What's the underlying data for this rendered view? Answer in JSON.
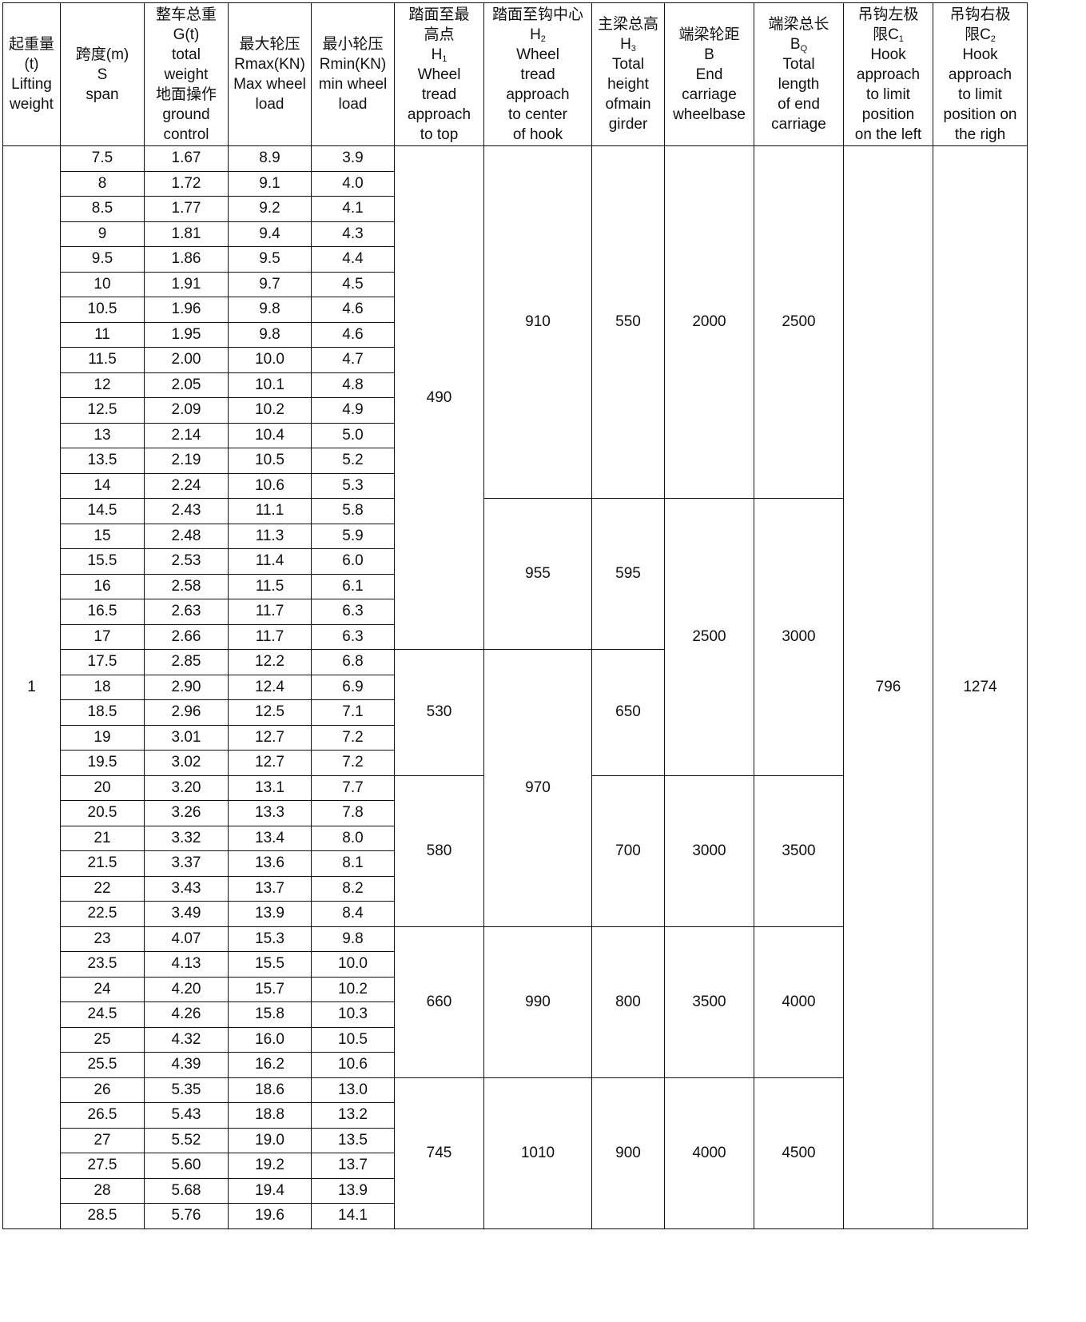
{
  "headers": [
    {
      "key": "lifting_weight",
      "lines": [
        "起重量",
        "(t)",
        "Lifting",
        "weight"
      ]
    },
    {
      "key": "span",
      "lines": [
        "跨度(m)",
        "S",
        "span"
      ]
    },
    {
      "key": "total_weight",
      "lines": [
        "整车总重",
        "G(t)",
        "total",
        "weight",
        "地面操作",
        "ground",
        "control"
      ]
    },
    {
      "key": "max_wheel_load",
      "lines": [
        "最大轮压",
        "Rmax(KN)",
        "Max wheel",
        "load"
      ]
    },
    {
      "key": "min_wheel_load",
      "lines": [
        "最小轮压",
        "Rmin(KN)",
        "min wheel",
        "load"
      ]
    },
    {
      "key": "h1",
      "lines": [
        "踏面至最",
        "高点",
        {
          "main": "H",
          "sub": "1"
        },
        "Wheel",
        "tread",
        "approach",
        "to top"
      ]
    },
    {
      "key": "h2",
      "lines": [
        "踏面至钩中心",
        {
          "main": "H",
          "sub": "2"
        },
        "Wheel",
        "tread",
        "approach",
        "to center",
        "of hook"
      ]
    },
    {
      "key": "h3",
      "lines": [
        "主梁总高",
        {
          "main": "H",
          "sub": "3"
        },
        "Total",
        "height",
        "ofmain",
        "girder"
      ]
    },
    {
      "key": "b",
      "lines": [
        "端梁轮距",
        "B",
        "End",
        "carriage",
        "wheelbase"
      ]
    },
    {
      "key": "bq",
      "lines": [
        "端梁总长",
        {
          "main": "B",
          "sub": "Q"
        },
        "Total",
        "length",
        "of end",
        "carriage"
      ]
    },
    {
      "key": "c1",
      "lines": [
        "吊钩左极",
        {
          "main": "限C",
          "sub": "1"
        },
        "Hook",
        "approach",
        "to limit",
        "position",
        "on the left"
      ]
    },
    {
      "key": "c2",
      "lines": [
        "吊钩右极",
        {
          "main": "限C",
          "sub": "2"
        },
        "Hook",
        "approach",
        "to limit",
        "position on",
        "the righ"
      ]
    }
  ],
  "lifting_weight": "1",
  "rows": [
    [
      "7.5",
      "1.67",
      "8.9",
      "3.9"
    ],
    [
      "8",
      "1.72",
      "9.1",
      "4.0"
    ],
    [
      "8.5",
      "1.77",
      "9.2",
      "4.1"
    ],
    [
      "9",
      "1.81",
      "9.4",
      "4.3"
    ],
    [
      "9.5",
      "1.86",
      "9.5",
      "4.4"
    ],
    [
      "10",
      "1.91",
      "9.7",
      "4.5"
    ],
    [
      "10.5",
      "1.96",
      "9.8",
      "4.6"
    ],
    [
      "11",
      "1.95",
      "9.8",
      "4.6"
    ],
    [
      "11.5",
      "2.00",
      "10.0",
      "4.7"
    ],
    [
      "12",
      "2.05",
      "10.1",
      "4.8"
    ],
    [
      "12.5",
      "2.09",
      "10.2",
      "4.9"
    ],
    [
      "13",
      "2.14",
      "10.4",
      "5.0"
    ],
    [
      "13.5",
      "2.19",
      "10.5",
      "5.2"
    ],
    [
      "14",
      "2.24",
      "10.6",
      "5.3"
    ],
    [
      "14.5",
      "2.43",
      "11.1",
      "5.8"
    ],
    [
      "15",
      "2.48",
      "11.3",
      "5.9"
    ],
    [
      "15.5",
      "2.53",
      "11.4",
      "6.0"
    ],
    [
      "16",
      "2.58",
      "11.5",
      "6.1"
    ],
    [
      "16.5",
      "2.63",
      "11.7",
      "6.3"
    ],
    [
      "17",
      "2.66",
      "11.7",
      "6.3"
    ],
    [
      "17.5",
      "2.85",
      "12.2",
      "6.8"
    ],
    [
      "18",
      "2.90",
      "12.4",
      "6.9"
    ],
    [
      "18.5",
      "2.96",
      "12.5",
      "7.1"
    ],
    [
      "19",
      "3.01",
      "12.7",
      "7.2"
    ],
    [
      "19.5",
      "3.02",
      "12.7",
      "7.2"
    ],
    [
      "20",
      "3.20",
      "13.1",
      "7.7"
    ],
    [
      "20.5",
      "3.26",
      "13.3",
      "7.8"
    ],
    [
      "21",
      "3.32",
      "13.4",
      "8.0"
    ],
    [
      "21.5",
      "3.37",
      "13.6",
      "8.1"
    ],
    [
      "22",
      "3.43",
      "13.7",
      "8.2"
    ],
    [
      "22.5",
      "3.49",
      "13.9",
      "8.4"
    ],
    [
      "23",
      "4.07",
      "15.3",
      "9.8"
    ],
    [
      "23.5",
      "4.13",
      "15.5",
      "10.0"
    ],
    [
      "24",
      "4.20",
      "15.7",
      "10.2"
    ],
    [
      "24.5",
      "4.26",
      "15.8",
      "10.3"
    ],
    [
      "25",
      "4.32",
      "16.0",
      "10.5"
    ],
    [
      "25.5",
      "4.39",
      "16.2",
      "10.6"
    ],
    [
      "26",
      "5.35",
      "18.6",
      "13.0"
    ],
    [
      "26.5",
      "5.43",
      "18.8",
      "13.2"
    ],
    [
      "27",
      "5.52",
      "19.0",
      "13.5"
    ],
    [
      "27.5",
      "5.60",
      "19.2",
      "13.7"
    ],
    [
      "28",
      "5.68",
      "19.4",
      "13.9"
    ],
    [
      "28.5",
      "5.76",
      "19.6",
      "14.1"
    ]
  ],
  "merged": {
    "h1": [
      {
        "value": "490",
        "rows": 20
      },
      {
        "value": "530",
        "rows": 5
      },
      {
        "value": "580",
        "rows": 6
      },
      {
        "value": "660",
        "rows": 6
      },
      {
        "value": "745",
        "rows": 6
      }
    ],
    "h2": [
      {
        "value": "910",
        "rows": 14
      },
      {
        "value": "955",
        "rows": 6
      },
      {
        "value": "970",
        "rows": 11
      },
      {
        "value": "990",
        "rows": 6
      },
      {
        "value": "1010",
        "rows": 6
      }
    ],
    "h3": [
      {
        "value": "550",
        "rows": 14
      },
      {
        "value": "595",
        "rows": 6
      },
      {
        "value": "650",
        "rows": 5
      },
      {
        "value": "700",
        "rows": 6
      },
      {
        "value": "800",
        "rows": 6
      },
      {
        "value": "900",
        "rows": 6
      }
    ],
    "b": [
      {
        "value": "2000",
        "rows": 14
      },
      {
        "value": "2500",
        "rows": 11
      },
      {
        "value": "3000",
        "rows": 6
      },
      {
        "value": "3500",
        "rows": 6
      },
      {
        "value": "4000",
        "rows": 6
      }
    ],
    "bq": [
      {
        "value": "2500",
        "rows": 14
      },
      {
        "value": "3000",
        "rows": 11
      },
      {
        "value": "3500",
        "rows": 6
      },
      {
        "value": "4000",
        "rows": 6
      },
      {
        "value": "4500",
        "rows": 6
      }
    ],
    "c1": [
      {
        "value": "796",
        "rows": 43
      }
    ],
    "c2": [
      {
        "value": "1274",
        "rows": 43
      }
    ]
  }
}
